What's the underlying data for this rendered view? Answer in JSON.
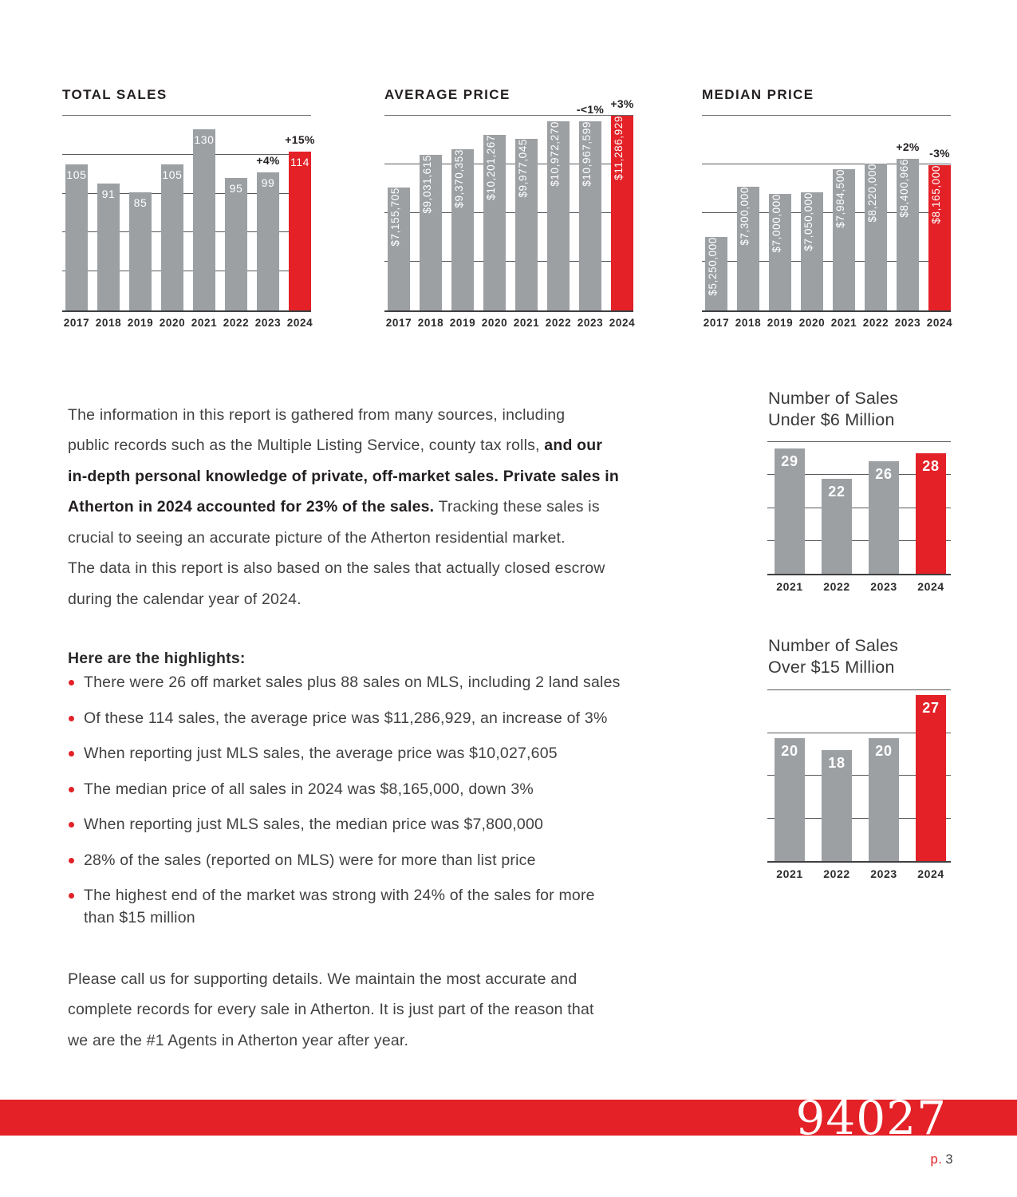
{
  "colors": {
    "accent_red": "#e32127",
    "bar_gray": "#9da0a3",
    "text_dark": "#231f20",
    "text_body": "#414042"
  },
  "chart_data": [
    {
      "type": "bar",
      "title": "TOTAL SALES",
      "categories": [
        "2017",
        "2018",
        "2019",
        "2020",
        "2021",
        "2022",
        "2023",
        "2024"
      ],
      "values": [
        105,
        91,
        85,
        105,
        130,
        95,
        99,
        114
      ],
      "labels": [
        "105",
        "91",
        "85",
        "105",
        "130",
        "95",
        "99",
        "114"
      ],
      "changes": [
        "",
        "",
        "",
        "",
        "",
        "",
        "+4%",
        "+15%"
      ],
      "highlight_category": "2024",
      "ylim": [
        0,
        140
      ],
      "divisions": 5,
      "label_orientation": "horizontal",
      "grid": true,
      "legend": "none"
    },
    {
      "type": "bar",
      "title": "AVERAGE PRICE",
      "categories": [
        "2017",
        "2018",
        "2019",
        "2020",
        "2021",
        "2022",
        "2023",
        "2024"
      ],
      "values": [
        7155705,
        9031615,
        9370353,
        10201267,
        9977045,
        10972270,
        10967599,
        11286929
      ],
      "labels": [
        "$7,155,705",
        "$9,031,615",
        "$9,370,353",
        "$10,201,267",
        "$9,977,045",
        "$10,972,270",
        "$10,967,599",
        "$11,286,929"
      ],
      "changes": [
        "",
        "",
        "",
        "",
        "",
        "",
        "-<1%",
        "+3%"
      ],
      "highlight_category": "2024",
      "ylim": [
        0,
        11300000
      ],
      "divisions": 4,
      "label_orientation": "vertical",
      "grid": true,
      "legend": "none"
    },
    {
      "type": "bar",
      "title": "MEDIAN PRICE",
      "categories": [
        "2017",
        "2018",
        "2019",
        "2020",
        "2021",
        "2022",
        "2023",
        "2024"
      ],
      "values": [
        5250000,
        7300000,
        7000000,
        7050000,
        7984500,
        8220000,
        8400966,
        8165000
      ],
      "labels": [
        "$5,250,000",
        "$7,300,000",
        "$7,000,000",
        "$7,050,000",
        "$7,984,500",
        "$8,220,000",
        "$8,400,966",
        "$8,165,000"
      ],
      "changes": [
        "",
        "",
        "",
        "",
        "",
        "",
        "+2%",
        "-3%"
      ],
      "highlight_category": "2024",
      "ylim": [
        2300000,
        10150000
      ],
      "divisions": 4,
      "label_orientation": "vertical",
      "grid": true,
      "legend": "none"
    },
    {
      "type": "bar",
      "title": "Number of Sales\nUnder $6 Million",
      "categories": [
        "2021",
        "2022",
        "2023",
        "2024"
      ],
      "values": [
        29,
        22,
        26,
        28
      ],
      "labels": [
        "29",
        "22",
        "26",
        "28"
      ],
      "changes": [
        "",
        "",
        "",
        ""
      ],
      "highlight_category": "2024",
      "ylim": [
        0,
        30.5
      ],
      "divisions": 4,
      "label_orientation": "horizontal",
      "grid": true,
      "legend": "none"
    },
    {
      "type": "bar",
      "title": "Number of Sales\nOver $15 Million",
      "categories": [
        "2021",
        "2022",
        "2023",
        "2024"
      ],
      "values": [
        20,
        18,
        20,
        27
      ],
      "labels": [
        "20",
        "18",
        "20",
        "27"
      ],
      "changes": [
        "",
        "",
        "",
        ""
      ],
      "highlight_category": "2024",
      "ylim": [
        0,
        27.8
      ],
      "divisions": 4,
      "label_orientation": "horizontal",
      "grid": true,
      "legend": "none"
    }
  ],
  "intro": {
    "segments": [
      {
        "bold": false,
        "text": "The information in this report is gathered from many sources, including\npublic records such as the Multiple Listing Service, county tax rolls, "
      },
      {
        "bold": true,
        "text": "and our\nin-depth personal knowledge of private, off-market sales. Private sales in\nAtherton in 2024 accounted for 23% of the sales."
      },
      {
        "bold": false,
        "text": " Tracking these sales is\ncrucial to seeing an accurate picture of the Atherton residential market.\nThe data in this report is also based on the sales that actually closed escrow\nduring the calendar year of 2024."
      }
    ]
  },
  "highlights": {
    "heading": "Here are the highlights:",
    "items": [
      "There were 26 off market sales plus 88 sales on MLS, including 2 land sales",
      "Of these 114 sales, the average price was $11,286,929, an increase of 3%",
      "When reporting just MLS sales, the average price was $10,027,605",
      "The median price of all sales in 2024 was $8,165,000, down 3%",
      "When reporting just MLS sales, the median price was $7,800,000",
      "28% of the sales (reported on MLS) were for more than list price",
      "The highest end of the market was strong with 24% of the sales for more\nthan $15 million"
    ]
  },
  "closing": {
    "text": "Please call us for supporting details. We maintain the most accurate and\ncomplete records for every sale in Atherton. It is just part of the reason that\nwe are the #1 Agents in Atherton year after year."
  },
  "footer": {
    "zip_code": "94027",
    "page_label": "p.",
    "page_number": "3"
  }
}
